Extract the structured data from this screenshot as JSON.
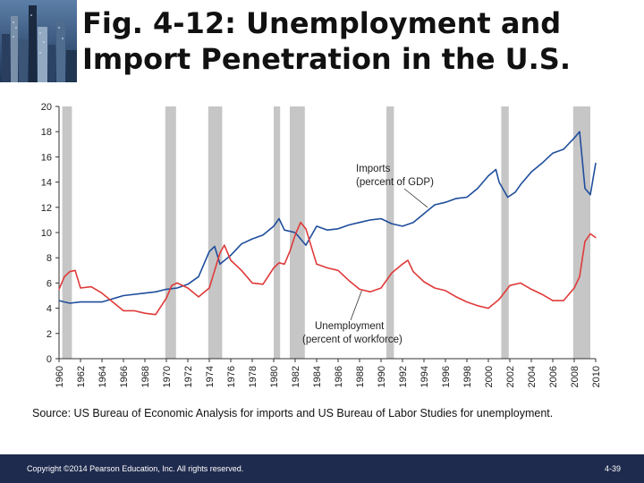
{
  "slide": {
    "title": "Fig. 4-12: Unemployment and Import Penetration in the U.S.",
    "source": "Source: US Bureau of Economic Analysis for imports and US Bureau of Labor Studies for unemployment.",
    "copyright": "Copyright ©2014 Pearson Education, Inc. All rights reserved.",
    "page_number": "4-39"
  },
  "chart_data": {
    "type": "line",
    "title": "",
    "xlabel": "",
    "ylabel": "",
    "xlim": [
      1960,
      2010
    ],
    "ylim": [
      0,
      20
    ],
    "y_ticks": [
      0,
      2,
      4,
      6,
      8,
      10,
      12,
      14,
      16,
      18,
      20
    ],
    "x_ticks": [
      1960,
      1962,
      1964,
      1966,
      1968,
      1970,
      1972,
      1974,
      1976,
      1978,
      1980,
      1982,
      1984,
      1986,
      1988,
      1990,
      1992,
      1994,
      1996,
      1998,
      2000,
      2002,
      2004,
      2006,
      2008,
      2010
    ],
    "x_tick_labels": [
      "1960",
      "1962",
      "1964",
      "1966",
      "1968",
      "1970",
      "1972",
      "1974",
      "1976",
      "1978",
      "1980",
      "1982",
      "1984",
      "1986",
      "1988",
      "1990",
      "1992",
      "1994",
      "1996",
      "1998",
      "2000",
      "2002",
      "2004",
      "2006",
      "2008",
      "2010"
    ],
    "recessions": [
      [
        1960.3,
        1961.2
      ],
      [
        1969.9,
        1970.9
      ],
      [
        1973.9,
        1975.2
      ],
      [
        1980.0,
        1980.6
      ],
      [
        1981.5,
        1982.9
      ],
      [
        1990.5,
        1991.2
      ],
      [
        2001.2,
        2001.9
      ],
      [
        2007.9,
        2009.5
      ]
    ],
    "series": [
      {
        "name": "Imports (percent of GDP)",
        "color": "#1f4e9c",
        "label_lines": [
          "Imports",
          "(percent of GDP)"
        ],
        "x": [
          1960,
          1961,
          1962,
          1964,
          1966,
          1968,
          1969,
          1970,
          1971,
          1972,
          1973,
          1974,
          1974.5,
          1975,
          1976,
          1977,
          1978,
          1979,
          1980,
          1980.5,
          1981,
          1982,
          1983,
          1984,
          1985,
          1986,
          1987,
          1988,
          1989,
          1990,
          1991,
          1992,
          1993,
          1994,
          1995,
          1996,
          1997,
          1998,
          1999,
          2000,
          2000.7,
          2001,
          2001.8,
          2002.5,
          2003,
          2004,
          2005,
          2006,
          2007,
          2008,
          2008.5,
          2009,
          2009.5,
          2010
        ],
        "y": [
          4.6,
          4.4,
          4.5,
          4.5,
          5.0,
          5.2,
          5.3,
          5.5,
          5.6,
          5.9,
          6.5,
          8.5,
          8.9,
          7.5,
          8.2,
          9.1,
          9.5,
          9.8,
          10.5,
          11.1,
          10.2,
          10.0,
          9.0,
          10.5,
          10.2,
          10.3,
          10.6,
          10.8,
          11.0,
          11.1,
          10.7,
          10.5,
          10.8,
          11.5,
          12.2,
          12.4,
          12.7,
          12.8,
          13.5,
          14.5,
          15.0,
          14.0,
          12.8,
          13.2,
          13.8,
          14.8,
          15.5,
          16.3,
          16.6,
          17.5,
          18.0,
          13.5,
          13.0,
          15.5
        ]
      },
      {
        "name": "Unemployment (percent of workforce)",
        "color": "#e03a3a",
        "label_lines": [
          "Unemployment",
          "(percent of workforce)"
        ],
        "x": [
          1960,
          1960.5,
          1961,
          1961.5,
          1962,
          1963,
          1964,
          1965,
          1966,
          1967,
          1968,
          1969,
          1970,
          1970.5,
          1971,
          1972,
          1973,
          1974,
          1974.5,
          1975,
          1975.4,
          1976,
          1977,
          1978,
          1979,
          1980,
          1980.5,
          1981,
          1981.5,
          1982,
          1982.5,
          1983,
          1984,
          1985,
          1986,
          1987,
          1988,
          1989,
          1990,
          1991,
          1992,
          1992.5,
          1993,
          1994,
          1995,
          1996,
          1997,
          1998,
          1999,
          2000,
          2001,
          2002,
          2003,
          2004,
          2005,
          2006,
          2007,
          2008,
          2008.5,
          2009,
          2009.5,
          2010
        ],
        "y": [
          5.5,
          6.5,
          6.9,
          7.0,
          5.6,
          5.7,
          5.2,
          4.5,
          3.8,
          3.8,
          3.6,
          3.5,
          4.8,
          5.8,
          6.0,
          5.6,
          4.9,
          5.6,
          7.0,
          8.4,
          9.0,
          7.8,
          7.0,
          6.0,
          5.9,
          7.2,
          7.6,
          7.5,
          8.5,
          9.8,
          10.8,
          10.3,
          7.5,
          7.2,
          7.0,
          6.2,
          5.5,
          5.3,
          5.6,
          6.8,
          7.5,
          7.8,
          6.9,
          6.1,
          5.6,
          5.4,
          4.9,
          4.5,
          4.2,
          4.0,
          4.7,
          5.8,
          6.0,
          5.5,
          5.1,
          4.6,
          4.6,
          5.6,
          6.5,
          9.3,
          9.9,
          9.6
        ]
      }
    ]
  }
}
